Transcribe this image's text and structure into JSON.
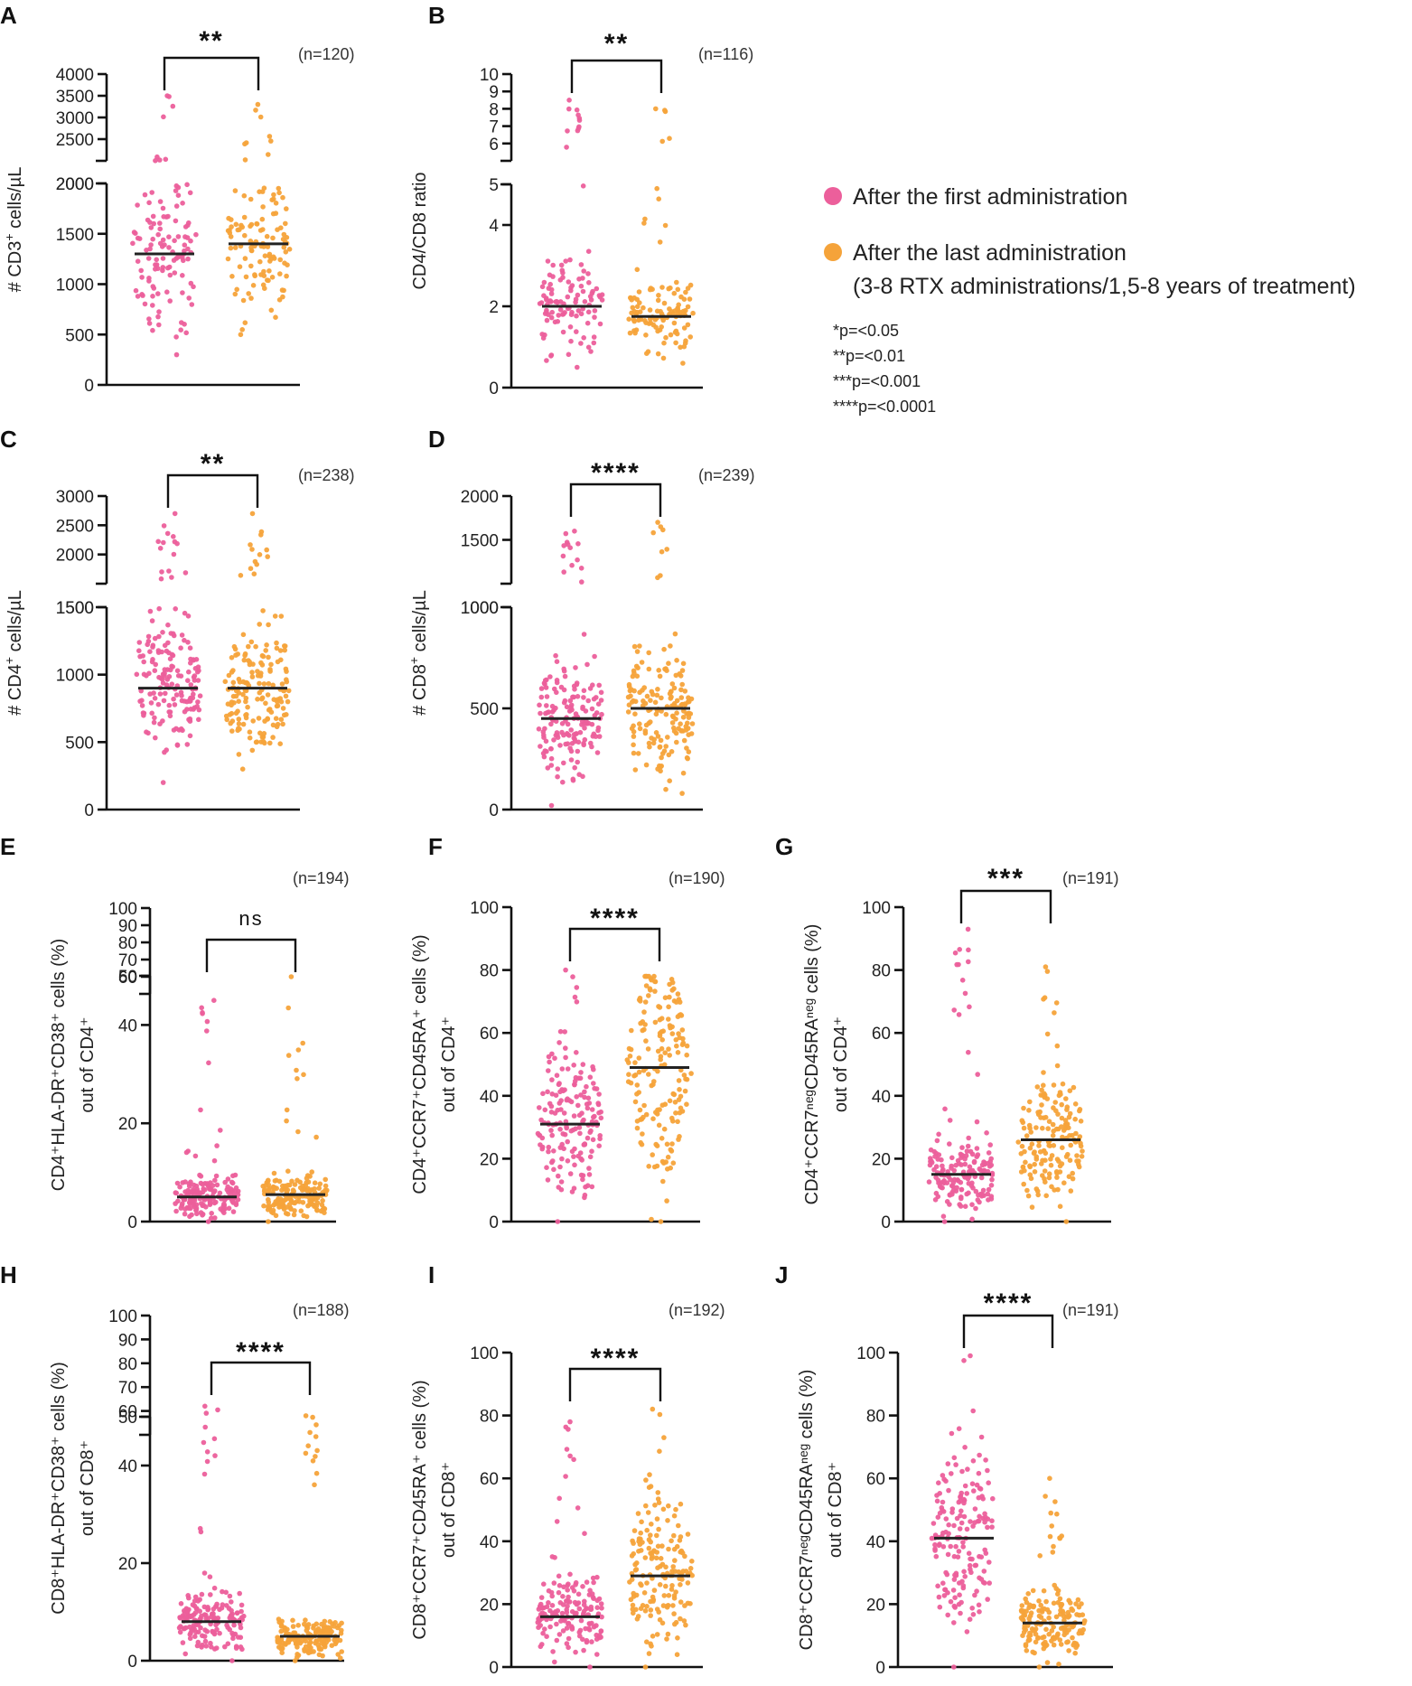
{
  "legend": {
    "items": [
      {
        "label": "After the first administration",
        "color": "#ec5f9b"
      },
      {
        "label": "After the last administration",
        "color": "#f5a33a"
      }
    ],
    "subtitle": "(3-8 RTX administrations/1,5-8 years of treatment)",
    "pvalues": [
      "*p=<0.05",
      "**p=<0.01",
      "***p=<0.001",
      "****p=<0.0001"
    ]
  },
  "chart_data": [
    {
      "panel": "A",
      "type": "scatter",
      "ylabel_main": "# CD3",
      "ylabel_sup": "+",
      "ylabel_rest": " cells/µL",
      "n_label": "(n=120)",
      "significance": "**",
      "ylim_lower": [
        0,
        2000
      ],
      "ylim_upper": [
        2000,
        4000
      ],
      "yticks_lower": [
        "0",
        "500",
        "1000",
        "1500",
        "2000"
      ],
      "yticks_lower_values": [
        0,
        500,
        1000,
        1500,
        2000
      ],
      "yticks_upper": [
        "2000",
        "2500",
        "3000",
        "3500",
        "4000"
      ],
      "yticks_upper_values": [
        2000,
        2500,
        3000,
        3500,
        4000
      ],
      "series": [
        {
          "name": "After the first administration",
          "median": 1300,
          "min": 300,
          "max": 3500,
          "n": 120
        },
        {
          "name": "After the last administration",
          "median": 1400,
          "min": 500,
          "max": 3300,
          "n": 120
        }
      ]
    },
    {
      "panel": "B",
      "type": "scatter",
      "ylabel_main": "CD4/CD8 ratio",
      "ylabel_sup": "",
      "ylabel_rest": "",
      "n_label": "(n=116)",
      "significance": "**",
      "ylim_lower": [
        0,
        5
      ],
      "ylim_upper": [
        5,
        10
      ],
      "yticks_lower": [
        "0",
        "2",
        "4"
      ],
      "yticks_lower_values": [
        0,
        2,
        4
      ],
      "yticks_upper": [
        "5",
        "6",
        "7",
        "8",
        "9",
        "10"
      ],
      "yticks_upper_values": [
        5,
        6,
        7,
        8,
        9,
        10
      ],
      "series": [
        {
          "name": "After the first administration",
          "median": 2.0,
          "min": 0.5,
          "max": 8.5,
          "n": 116
        },
        {
          "name": "After the last administration",
          "median": 1.75,
          "min": 0.6,
          "max": 8.0,
          "n": 116
        }
      ]
    },
    {
      "panel": "C",
      "type": "scatter",
      "ylabel_main": "# CD4",
      "ylabel_sup": "+",
      "ylabel_rest": " cells/µL",
      "n_label": "(n=238)",
      "significance": "**",
      "ylim_lower": [
        0,
        1500
      ],
      "ylim_upper": [
        1500,
        3000
      ],
      "yticks_lower": [
        "0",
        "500",
        "1000",
        "1500"
      ],
      "yticks_lower_values": [
        0,
        500,
        1000,
        1500
      ],
      "yticks_upper": [
        "1500",
        "2000",
        "2500",
        "3000"
      ],
      "yticks_upper_values": [
        1500,
        2000,
        2500,
        3000
      ],
      "series": [
        {
          "name": "After the first administration",
          "median": 900,
          "min": 200,
          "max": 2700,
          "n": 238
        },
        {
          "name": "After the last administration",
          "median": 900,
          "min": 300,
          "max": 2700,
          "n": 238
        }
      ]
    },
    {
      "panel": "D",
      "type": "scatter",
      "ylabel_main": "# CD8",
      "ylabel_sup": "+",
      "ylabel_rest": " cells/µL",
      "n_label": "(n=239)",
      "significance": "****",
      "ylim_lower": [
        0,
        1000
      ],
      "ylim_upper": [
        1000,
        2000
      ],
      "yticks_lower": [
        "0",
        "500",
        "1000"
      ],
      "yticks_lower_values": [
        0,
        500,
        1000
      ],
      "yticks_upper": [
        "1000",
        "1500",
        "2000"
      ],
      "yticks_upper_values": [
        1000,
        1500,
        2000
      ],
      "series": [
        {
          "name": "After the first administration",
          "median": 450,
          "min": 20,
          "max": 1600,
          "n": 239
        },
        {
          "name": "After the last administration",
          "median": 500,
          "min": 80,
          "max": 1700,
          "n": 239
        }
      ]
    },
    {
      "panel": "E",
      "type": "scatter",
      "ylabel_main": "CD4⁺HLA-DR⁺CD38⁺ cells (%)",
      "ylabel_line2": "out of CD4⁺",
      "n_label": "(n=194)",
      "significance": "ns",
      "ylim_lower": [
        0,
        50
      ],
      "ylim_upper": [
        50,
        100
      ],
      "yticks_lower": [
        "0",
        "20",
        "40"
      ],
      "yticks_lower_values": [
        0,
        20,
        40
      ],
      "yticks_upper": [
        "50",
        "60",
        "70",
        "80",
        "90",
        "100"
      ],
      "yticks_upper_values": [
        50,
        60,
        70,
        80,
        90,
        100
      ],
      "series": [
        {
          "name": "After the first administration",
          "median": 5,
          "min": 0,
          "max": 45,
          "n": 194
        },
        {
          "name": "After the last administration",
          "median": 5.5,
          "min": 0,
          "max": 60,
          "n": 194
        }
      ]
    },
    {
      "panel": "F",
      "type": "scatter",
      "ylabel_main": "CD4⁺CCR7⁺CD45RA⁺ cells (%)",
      "ylabel_line2": "out of CD4⁺",
      "n_label": "(n=190)",
      "significance": "****",
      "ylim": [
        0,
        100
      ],
      "yticks": [
        "0",
        "20",
        "40",
        "60",
        "80",
        "100"
      ],
      "yticks_values": [
        0,
        20,
        40,
        60,
        80,
        100
      ],
      "series": [
        {
          "name": "After the first administration",
          "median": 31,
          "min": 0,
          "max": 80,
          "n": 190
        },
        {
          "name": "After the last administration",
          "median": 49,
          "min": 0,
          "max": 78,
          "n": 190
        }
      ]
    },
    {
      "panel": "G",
      "type": "scatter",
      "ylabel_main": "CD4⁺CCR7ⁿᵉᵍCD45RAⁿᵉᵍ cells (%)",
      "ylabel_line2": "out of CD4⁺",
      "n_label": "(n=191)",
      "significance": "***",
      "ylim": [
        0,
        100
      ],
      "yticks": [
        "0",
        "20",
        "40",
        "60",
        "80",
        "100"
      ],
      "yticks_values": [
        0,
        20,
        40,
        60,
        80,
        100
      ],
      "series": [
        {
          "name": "After the first administration",
          "median": 15,
          "min": 0,
          "max": 93,
          "n": 191
        },
        {
          "name": "After the last administration",
          "median": 26,
          "min": 0,
          "max": 81,
          "n": 191
        }
      ]
    },
    {
      "panel": "H",
      "type": "scatter",
      "ylabel_main": "CD8⁺HLA-DR⁺CD38⁺ cells (%)",
      "ylabel_line2": "out of CD8⁺",
      "n_label": "(n=188)",
      "significance": "****",
      "ylim_lower": [
        0,
        50
      ],
      "ylim_upper": [
        50,
        100
      ],
      "yticks_lower": [
        "0",
        "20",
        "40"
      ],
      "yticks_lower_values": [
        0,
        20,
        40
      ],
      "yticks_upper": [
        "50",
        "60",
        "70",
        "80",
        "90",
        "100"
      ],
      "yticks_upper_values": [
        50,
        60,
        70,
        80,
        90,
        100
      ],
      "series": [
        {
          "name": "After the first administration",
          "median": 8,
          "min": 0,
          "max": 62,
          "n": 188
        },
        {
          "name": "After the last administration",
          "median": 5,
          "min": 0,
          "max": 58,
          "n": 188
        }
      ]
    },
    {
      "panel": "I",
      "type": "scatter",
      "ylabel_main": "CD8⁺CCR7⁺CD45RA⁺ cells (%)",
      "ylabel_line2": "out of CD8⁺",
      "n_label": "(n=192)",
      "significance": "****",
      "ylim": [
        0,
        100
      ],
      "yticks": [
        "0",
        "20",
        "40",
        "60",
        "80",
        "100"
      ],
      "yticks_values": [
        0,
        20,
        40,
        60,
        80,
        100
      ],
      "series": [
        {
          "name": "After the first administration",
          "median": 16,
          "min": 0,
          "max": 78,
          "n": 192
        },
        {
          "name": "After the last administration",
          "median": 29,
          "min": 0,
          "max": 82,
          "n": 192
        }
      ]
    },
    {
      "panel": "J",
      "type": "scatter",
      "ylabel_main": "CD8⁺CCR7ⁿᵉᵍCD45RAⁿᵉᵍ cells (%)",
      "ylabel_line2": "out of CD8⁺",
      "n_label": "(n=191)",
      "significance": "****",
      "ylim": [
        0,
        100
      ],
      "yticks": [
        "0",
        "20",
        "40",
        "60",
        "80",
        "100"
      ],
      "yticks_values": [
        0,
        20,
        40,
        60,
        80,
        100
      ],
      "series": [
        {
          "name": "After the first administration",
          "median": 41,
          "min": 0,
          "max": 99,
          "n": 191
        },
        {
          "name": "After the last administration",
          "median": 14,
          "min": 0,
          "max": 60,
          "n": 191
        }
      ]
    }
  ]
}
